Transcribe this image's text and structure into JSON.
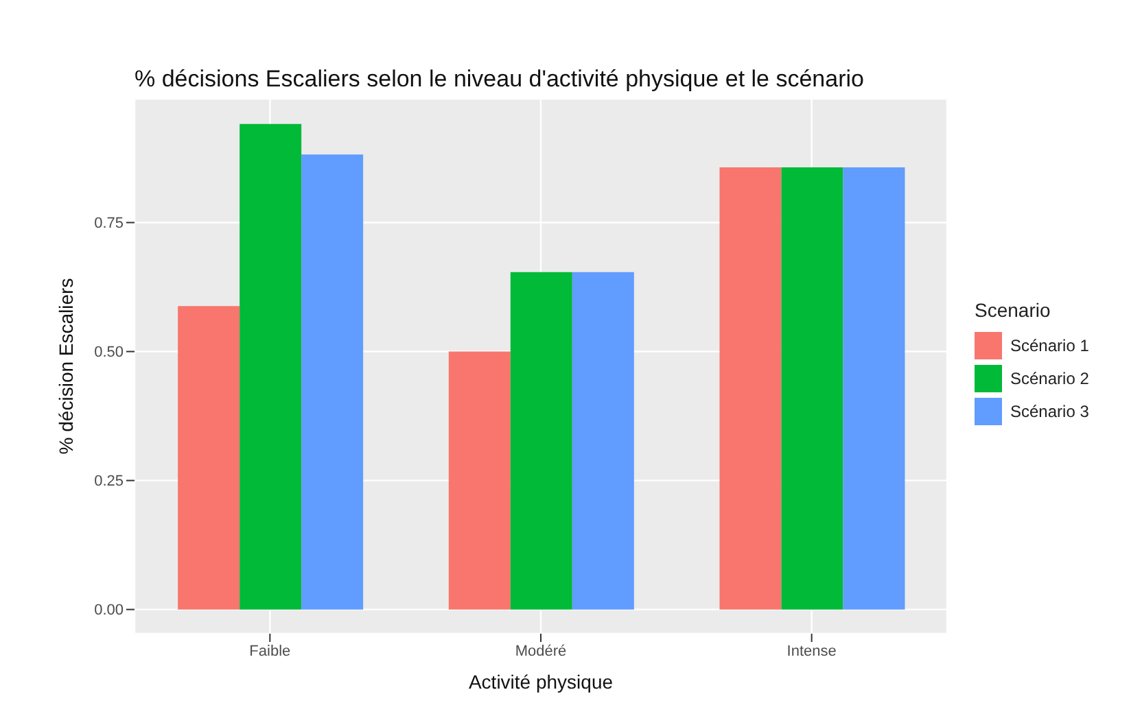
{
  "chart_data": {
    "type": "bar",
    "title": "% décisions Escaliers selon le niveau d'activité physique et le scénario",
    "xlabel": "Activité physique",
    "ylabel": "% décision Escaliers",
    "legend_title": "Scenario",
    "categories": [
      "Faible",
      "Modéré",
      "Intense"
    ],
    "series": [
      {
        "name": "Scénario 1",
        "color": "#f8766d",
        "values": [
          0.588,
          0.5,
          0.857
        ]
      },
      {
        "name": "Scénario 2",
        "color": "#00ba38",
        "values": [
          0.941,
          0.654,
          0.857
        ]
      },
      {
        "name": "Scénario 3",
        "color": "#619cff",
        "values": [
          0.882,
          0.654,
          0.857
        ]
      }
    ],
    "ylim": [
      -0.047,
      0.99
    ],
    "yticks": [
      {
        "value": 0,
        "label": "0.00"
      },
      {
        "value": 0.25,
        "label": "0.25"
      },
      {
        "value": 0.5,
        "label": "0.50"
      },
      {
        "value": 0.75,
        "label": "0.75"
      }
    ],
    "grid": true,
    "legend": "right"
  }
}
